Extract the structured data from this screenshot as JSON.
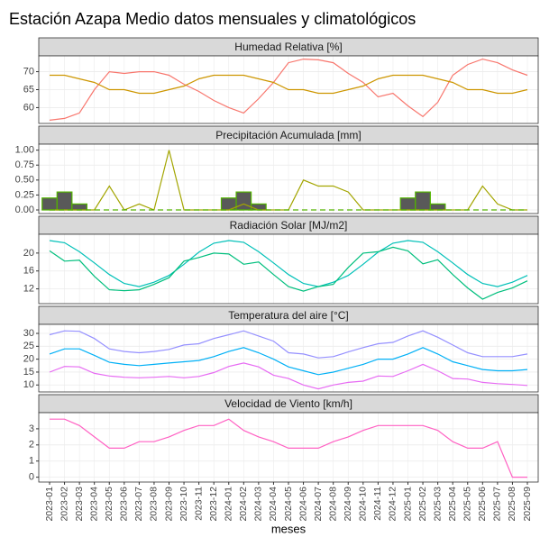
{
  "title": "Estación Azapa Medio datos mensuales y climatológicos",
  "xlabel": "meses",
  "categories": [
    "2023-01",
    "2023-02",
    "2023-03",
    "2023-04",
    "2023-05",
    "2023-06",
    "2023-07",
    "2023-08",
    "2023-09",
    "2023-10",
    "2023-11",
    "2023-12",
    "2024-01",
    "2024-02",
    "2024-03",
    "2024-04",
    "2024-05",
    "2024-06",
    "2024-07",
    "2024-08",
    "2024-09",
    "2024-10",
    "2024-11",
    "2024-12",
    "2025-01",
    "2025-02",
    "2025-03",
    "2025-04",
    "2025-05",
    "2025-06",
    "2025-07",
    "2025-08",
    "2025-09"
  ],
  "chart_data": [
    {
      "type": "line",
      "title": "Humedad Relativa [%]",
      "ylim": [
        55.6,
        74.4
      ],
      "yticks": [
        60,
        65,
        70
      ],
      "grid": true,
      "series": [
        {
          "color": "#F8766D",
          "values": [
            56.5,
            57,
            58.5,
            65,
            70,
            69.5,
            70,
            70,
            69,
            66.5,
            64.5,
            62,
            60,
            58.5,
            62.5,
            67,
            72.5,
            73.5,
            73.3,
            72.5,
            69.5,
            67,
            63,
            64,
            60.5,
            57.5,
            61.5,
            69,
            72,
            73.5,
            72.5,
            70.5,
            69
          ]
        },
        {
          "color": "#CD9600",
          "values": [
            69,
            69,
            68,
            67,
            65,
            65,
            64,
            64,
            65,
            66,
            68,
            69,
            69,
            69,
            68,
            67,
            65,
            65,
            64,
            64,
            65,
            66,
            68,
            69,
            69,
            69,
            68,
            67,
            65,
            65,
            64,
            64,
            65
          ]
        }
      ]
    },
    {
      "type": "line",
      "title": "Precipitación Acumulada [mm]",
      "ylim": [
        -0.06,
        1.1
      ],
      "yticks": [
        {
          "value": 0,
          "label": "0.00"
        },
        {
          "value": 0.25,
          "label": "0.25"
        },
        {
          "value": 0.5,
          "label": "0.50"
        },
        {
          "value": 0.75,
          "label": "0.75"
        },
        {
          "value": 1,
          "label": "1.00"
        }
      ],
      "grid": true,
      "series": [
        {
          "type": "bar",
          "color": "#595959",
          "edge_color": "#53B400",
          "values": [
            0.2,
            0.3,
            0.1,
            null,
            null,
            null,
            null,
            null,
            null,
            null,
            null,
            null,
            0.2,
            0.3,
            0.1,
            null,
            null,
            null,
            null,
            null,
            null,
            null,
            null,
            null,
            0.2,
            0.3,
            0.1,
            null,
            null,
            null,
            null,
            null,
            null
          ]
        },
        {
          "color": "#A3A500",
          "values": [
            0,
            0,
            0,
            0,
            0.4,
            0,
            0.1,
            0,
            1,
            0,
            0,
            0,
            0,
            0.1,
            0,
            0,
            0,
            0.5,
            0.4,
            0.4,
            0.3,
            0,
            0,
            0,
            0,
            0,
            0,
            0,
            0,
            0.4,
            0.1,
            0,
            0
          ]
        },
        {
          "color": "#53B400",
          "dashed": true,
          "values": [
            0,
            0,
            0,
            0,
            0,
            0,
            0,
            0,
            0,
            0,
            0,
            0,
            0,
            0,
            0,
            0,
            0,
            0,
            0,
            0,
            0,
            0,
            0,
            0,
            0,
            0,
            0,
            0,
            0,
            0,
            0,
            0,
            0
          ]
        }
      ]
    },
    {
      "type": "line",
      "title": "Radiación Solar [MJ/m2]",
      "ylim": [
        8.7,
        24.2
      ],
      "yticks": [
        12,
        16,
        20
      ],
      "grid": true,
      "series": [
        {
          "color": "#00C0B8",
          "values": [
            22.8,
            22.3,
            20.3,
            17.8,
            15.2,
            13.2,
            12.5,
            13.5,
            15,
            17.5,
            20.2,
            22.2,
            22.8,
            22.4,
            20.3,
            17.8,
            15.2,
            13.2,
            12.5,
            13.5,
            15,
            17.5,
            20.2,
            22.2,
            22.8,
            22.4,
            20.3,
            17.8,
            15.2,
            13.2,
            12.5,
            13.5,
            15
          ]
        },
        {
          "color": "#00BF7D",
          "values": [
            20.5,
            18.2,
            18.4,
            14.8,
            11.8,
            11.6,
            11.8,
            13,
            14.5,
            18.2,
            19,
            20,
            19.8,
            17.5,
            18,
            15.2,
            12.5,
            11.5,
            12.5,
            13,
            16.8,
            20,
            20.3,
            21.3,
            20.5,
            17.6,
            18.5,
            15.2,
            12.2,
            9.7,
            11.2,
            12.2,
            13.8
          ]
        }
      ]
    },
    {
      "type": "line",
      "title": "Temperatura del aire [°C]",
      "ylim": [
        7.3,
        33.5
      ],
      "yticks": [
        10,
        15,
        20,
        25,
        30
      ],
      "grid": true,
      "series": [
        {
          "color": "#9590FF",
          "values": [
            29.5,
            31,
            30.8,
            28,
            24,
            23,
            22.5,
            23,
            23.8,
            25.5,
            26,
            28,
            29.5,
            31,
            29,
            27,
            22.5,
            22,
            20.5,
            21,
            22.8,
            24.5,
            26,
            26.5,
            29,
            31,
            28.5,
            25.5,
            22.5,
            21,
            21,
            21,
            22
          ]
        },
        {
          "color": "#00B0F6",
          "values": [
            22,
            24,
            24,
            21.5,
            18.8,
            18,
            17.5,
            18,
            18.5,
            19,
            19.5,
            21,
            23,
            24.5,
            22.5,
            20,
            17,
            15.5,
            14,
            15,
            16.5,
            18,
            20,
            20,
            22,
            24.5,
            22,
            19,
            17.5,
            16,
            15.5,
            15.5,
            16
          ]
        },
        {
          "color": "#E76BF3",
          "values": [
            15,
            17.2,
            17,
            14.5,
            13.5,
            13,
            12.8,
            13,
            13.3,
            12.8,
            13.3,
            14.8,
            17.2,
            18.5,
            17,
            13.8,
            12.5,
            10,
            8.5,
            10,
            11,
            11.5,
            13.5,
            13.3,
            15.5,
            18,
            15.5,
            12.5,
            12.3,
            11,
            10.5,
            10.2,
            9.8
          ]
        }
      ]
    },
    {
      "type": "line",
      "title": "Velocidad de Viento [km/h]",
      "ylim": [
        -0.3,
        4.0
      ],
      "yticks": [
        0,
        1,
        2,
        3
      ],
      "grid": true,
      "series": [
        {
          "color": "#FF61C3",
          "values": [
            3.6,
            3.6,
            3.2,
            2.5,
            1.8,
            1.8,
            2.2,
            2.2,
            2.5,
            2.9,
            3.2,
            3.2,
            3.6,
            2.9,
            2.5,
            2.2,
            1.8,
            1.8,
            1.8,
            2.2,
            2.5,
            2.9,
            3.2,
            3.2,
            3.2,
            3.2,
            2.9,
            2.2,
            1.8,
            1.8,
            2.2,
            0,
            0
          ]
        }
      ]
    }
  ]
}
